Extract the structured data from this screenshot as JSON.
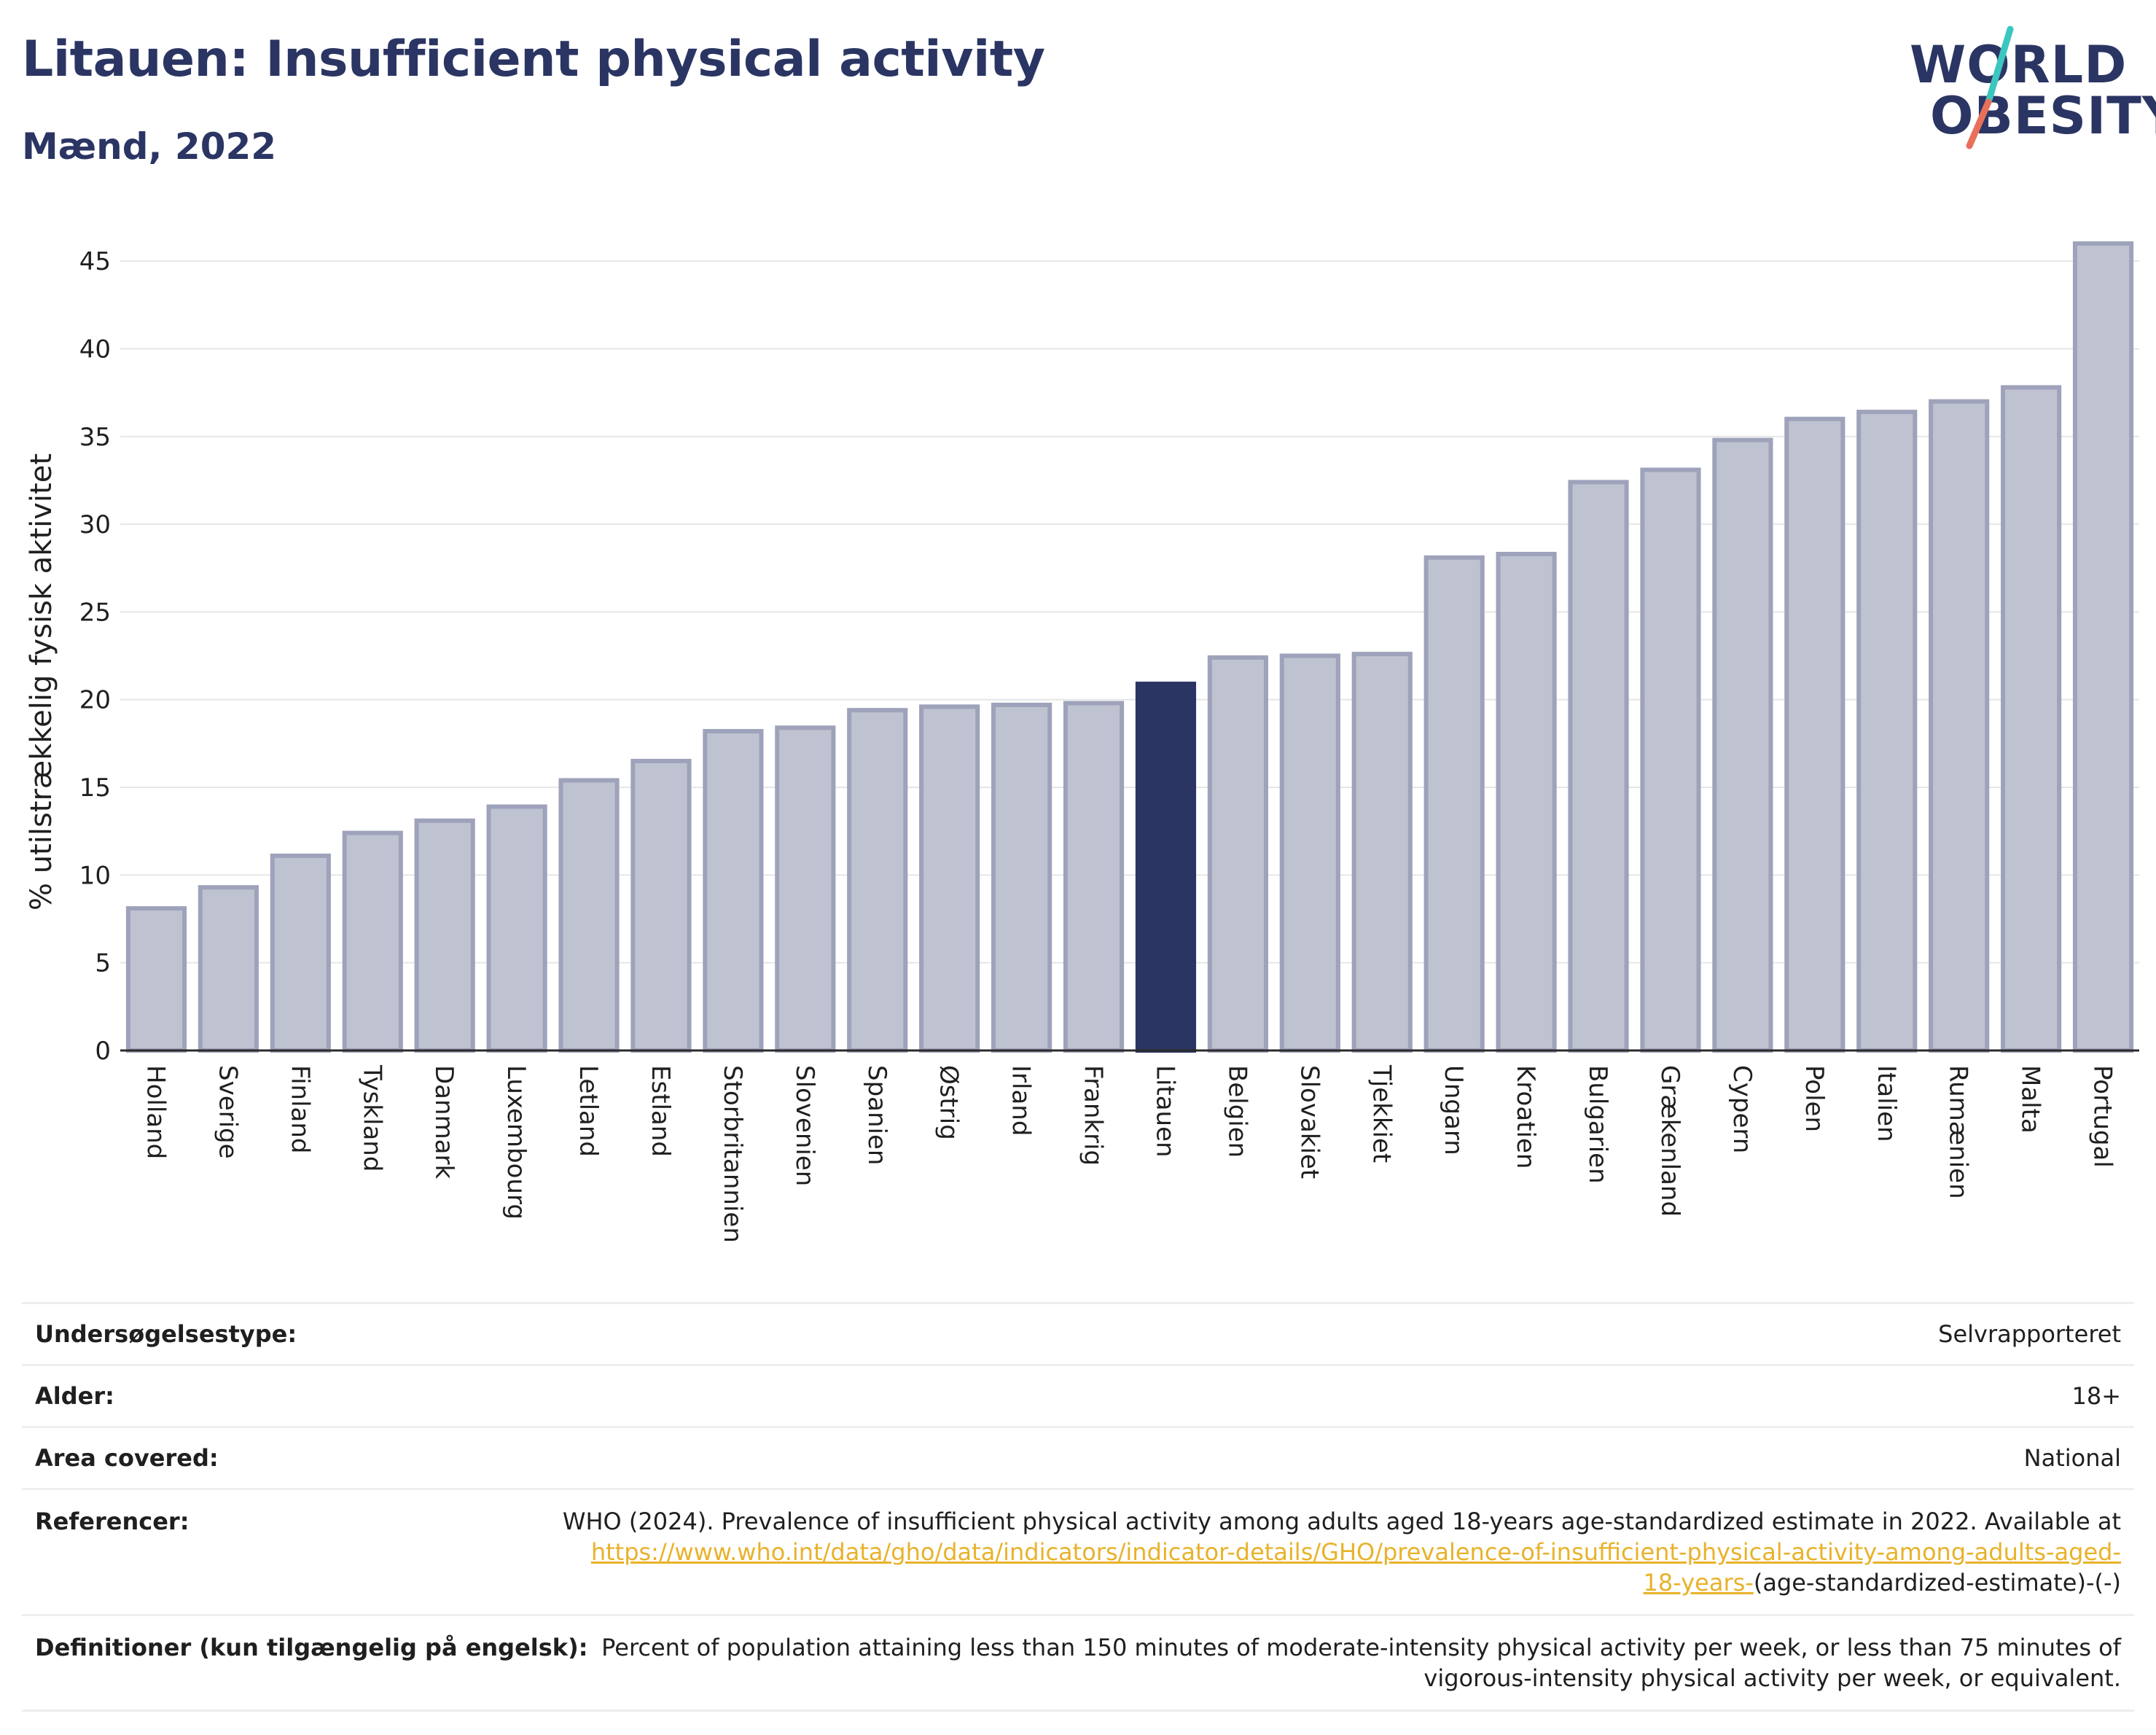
{
  "header": {
    "title": "Litauen: Insufficient physical activity",
    "subtitle": "Mænd, 2022"
  },
  "logo": {
    "line1": "WORLD",
    "line2": "OBESITY",
    "slash_colors": [
      "#3cc6c0",
      "#e8705a"
    ]
  },
  "colors": {
    "bar": "#bfc2d0",
    "bar_border": "#9ea2ba",
    "highlight": "#2b3563",
    "title": "#2b3563",
    "link": "#e8b22a"
  },
  "chart_data": {
    "type": "bar",
    "ylabel": "% utilstrækkelig fysisk aktivitet",
    "ylim": [
      0,
      47
    ],
    "yticks": [
      0,
      5,
      10,
      15,
      20,
      25,
      30,
      35,
      40,
      45
    ],
    "grid": true,
    "highlight": "Litauen",
    "categories": [
      "Holland",
      "Sverige",
      "Finland",
      "Tyskland",
      "Danmark",
      "Luxembourg",
      "Letland",
      "Estland",
      "Storbritannien",
      "Slovenien",
      "Spanien",
      "Østrig",
      "Irland",
      "Frankrig",
      "Litauen",
      "Belgien",
      "Slovakiet",
      "Tjekkiet",
      "Ungarn",
      "Kroatien",
      "Bulgarien",
      "Grækenland",
      "Cypern",
      "Polen",
      "Italien",
      "Rumænien",
      "Malta",
      "Portugal"
    ],
    "values": [
      8.1,
      9.3,
      11.1,
      12.4,
      13.1,
      13.9,
      15.4,
      16.5,
      18.2,
      18.4,
      19.4,
      19.6,
      19.7,
      19.8,
      20.9,
      22.4,
      22.5,
      22.6,
      28.1,
      28.3,
      32.4,
      33.1,
      34.8,
      36.0,
      36.4,
      37.0,
      37.8,
      46.0
    ]
  },
  "info": [
    {
      "label": "Undersøgelsestype:",
      "value": "Selvrapporteret"
    },
    {
      "label": "Alder:",
      "value": "18+"
    },
    {
      "label": "Area covered:",
      "value": "National"
    },
    {
      "label": "Referencer:",
      "value_pre": "WHO (2024). Prevalence of insufficient physical activity among adults aged 18-years age-standardized estimate in 2022. Available at",
      "value_link": "https://www.who.int/data/gho/data/indicators/indicator-details/GHO/prevalence-of-insufficient-physical-activity-among-adults-aged-18-years-",
      "value_post": "(age-standardized-estimate)-(-)"
    },
    {
      "label": "Definitioner (kun tilgængelig på engelsk):",
      "value": "Percent of population attaining less than 150 minutes of moderate-intensity physical activity per week, or less than 75 minutes of vigorous-intensity physical activity per week, or equivalent."
    }
  ]
}
